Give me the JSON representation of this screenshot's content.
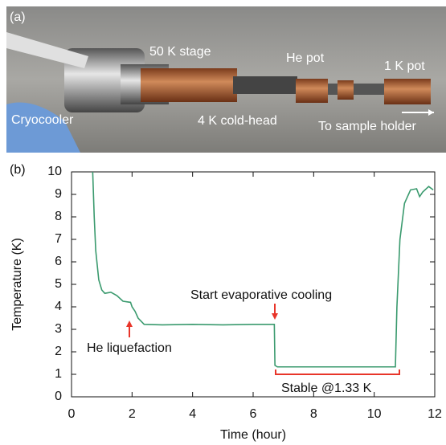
{
  "photo": {
    "panel_label": "(a)",
    "labels": [
      "50 K stage",
      "He pot",
      "1 K pot",
      "Cryocooler",
      "4 K cold-head",
      "To sample holder"
    ]
  },
  "chart_data": {
    "type": "line",
    "panel_label": "(b)",
    "x_label": "Time (hour)",
    "y_label": "Temperature (K)",
    "x": [
      0.7,
      0.75,
      0.8,
      0.9,
      1.0,
      1.1,
      1.3,
      1.5,
      1.7,
      1.95,
      2.0,
      2.1,
      2.2,
      2.4,
      3,
      4,
      5,
      6,
      6.7,
      6.72,
      6.8,
      8,
      9,
      10,
      10.7,
      10.75,
      10.85,
      11,
      11.2,
      11.4,
      11.5,
      11.6,
      11.8,
      11.95
    ],
    "values": [
      10,
      8,
      6.5,
      5.2,
      4.75,
      4.6,
      4.65,
      4.5,
      4.25,
      4.2,
      4.0,
      3.8,
      3.5,
      3.22,
      3.2,
      3.22,
      3.2,
      3.22,
      3.22,
      1.4,
      1.33,
      1.33,
      1.33,
      1.33,
      1.33,
      4,
      7,
      8.6,
      9.2,
      9.25,
      8.9,
      9.1,
      9.35,
      9.2
    ],
    "color": "#3a9a6e",
    "xlim": [
      0,
      12
    ],
    "xticks": [
      0,
      2,
      4,
      6,
      8,
      10,
      12
    ],
    "ylim": [
      0,
      10
    ],
    "yticks": [
      0,
      1,
      2,
      3,
      4,
      5,
      6,
      7,
      8,
      9,
      10
    ],
    "annotations": [
      "Start evaporative cooling",
      "He  liquefaction",
      "Stable @1.33 K"
    ]
  }
}
